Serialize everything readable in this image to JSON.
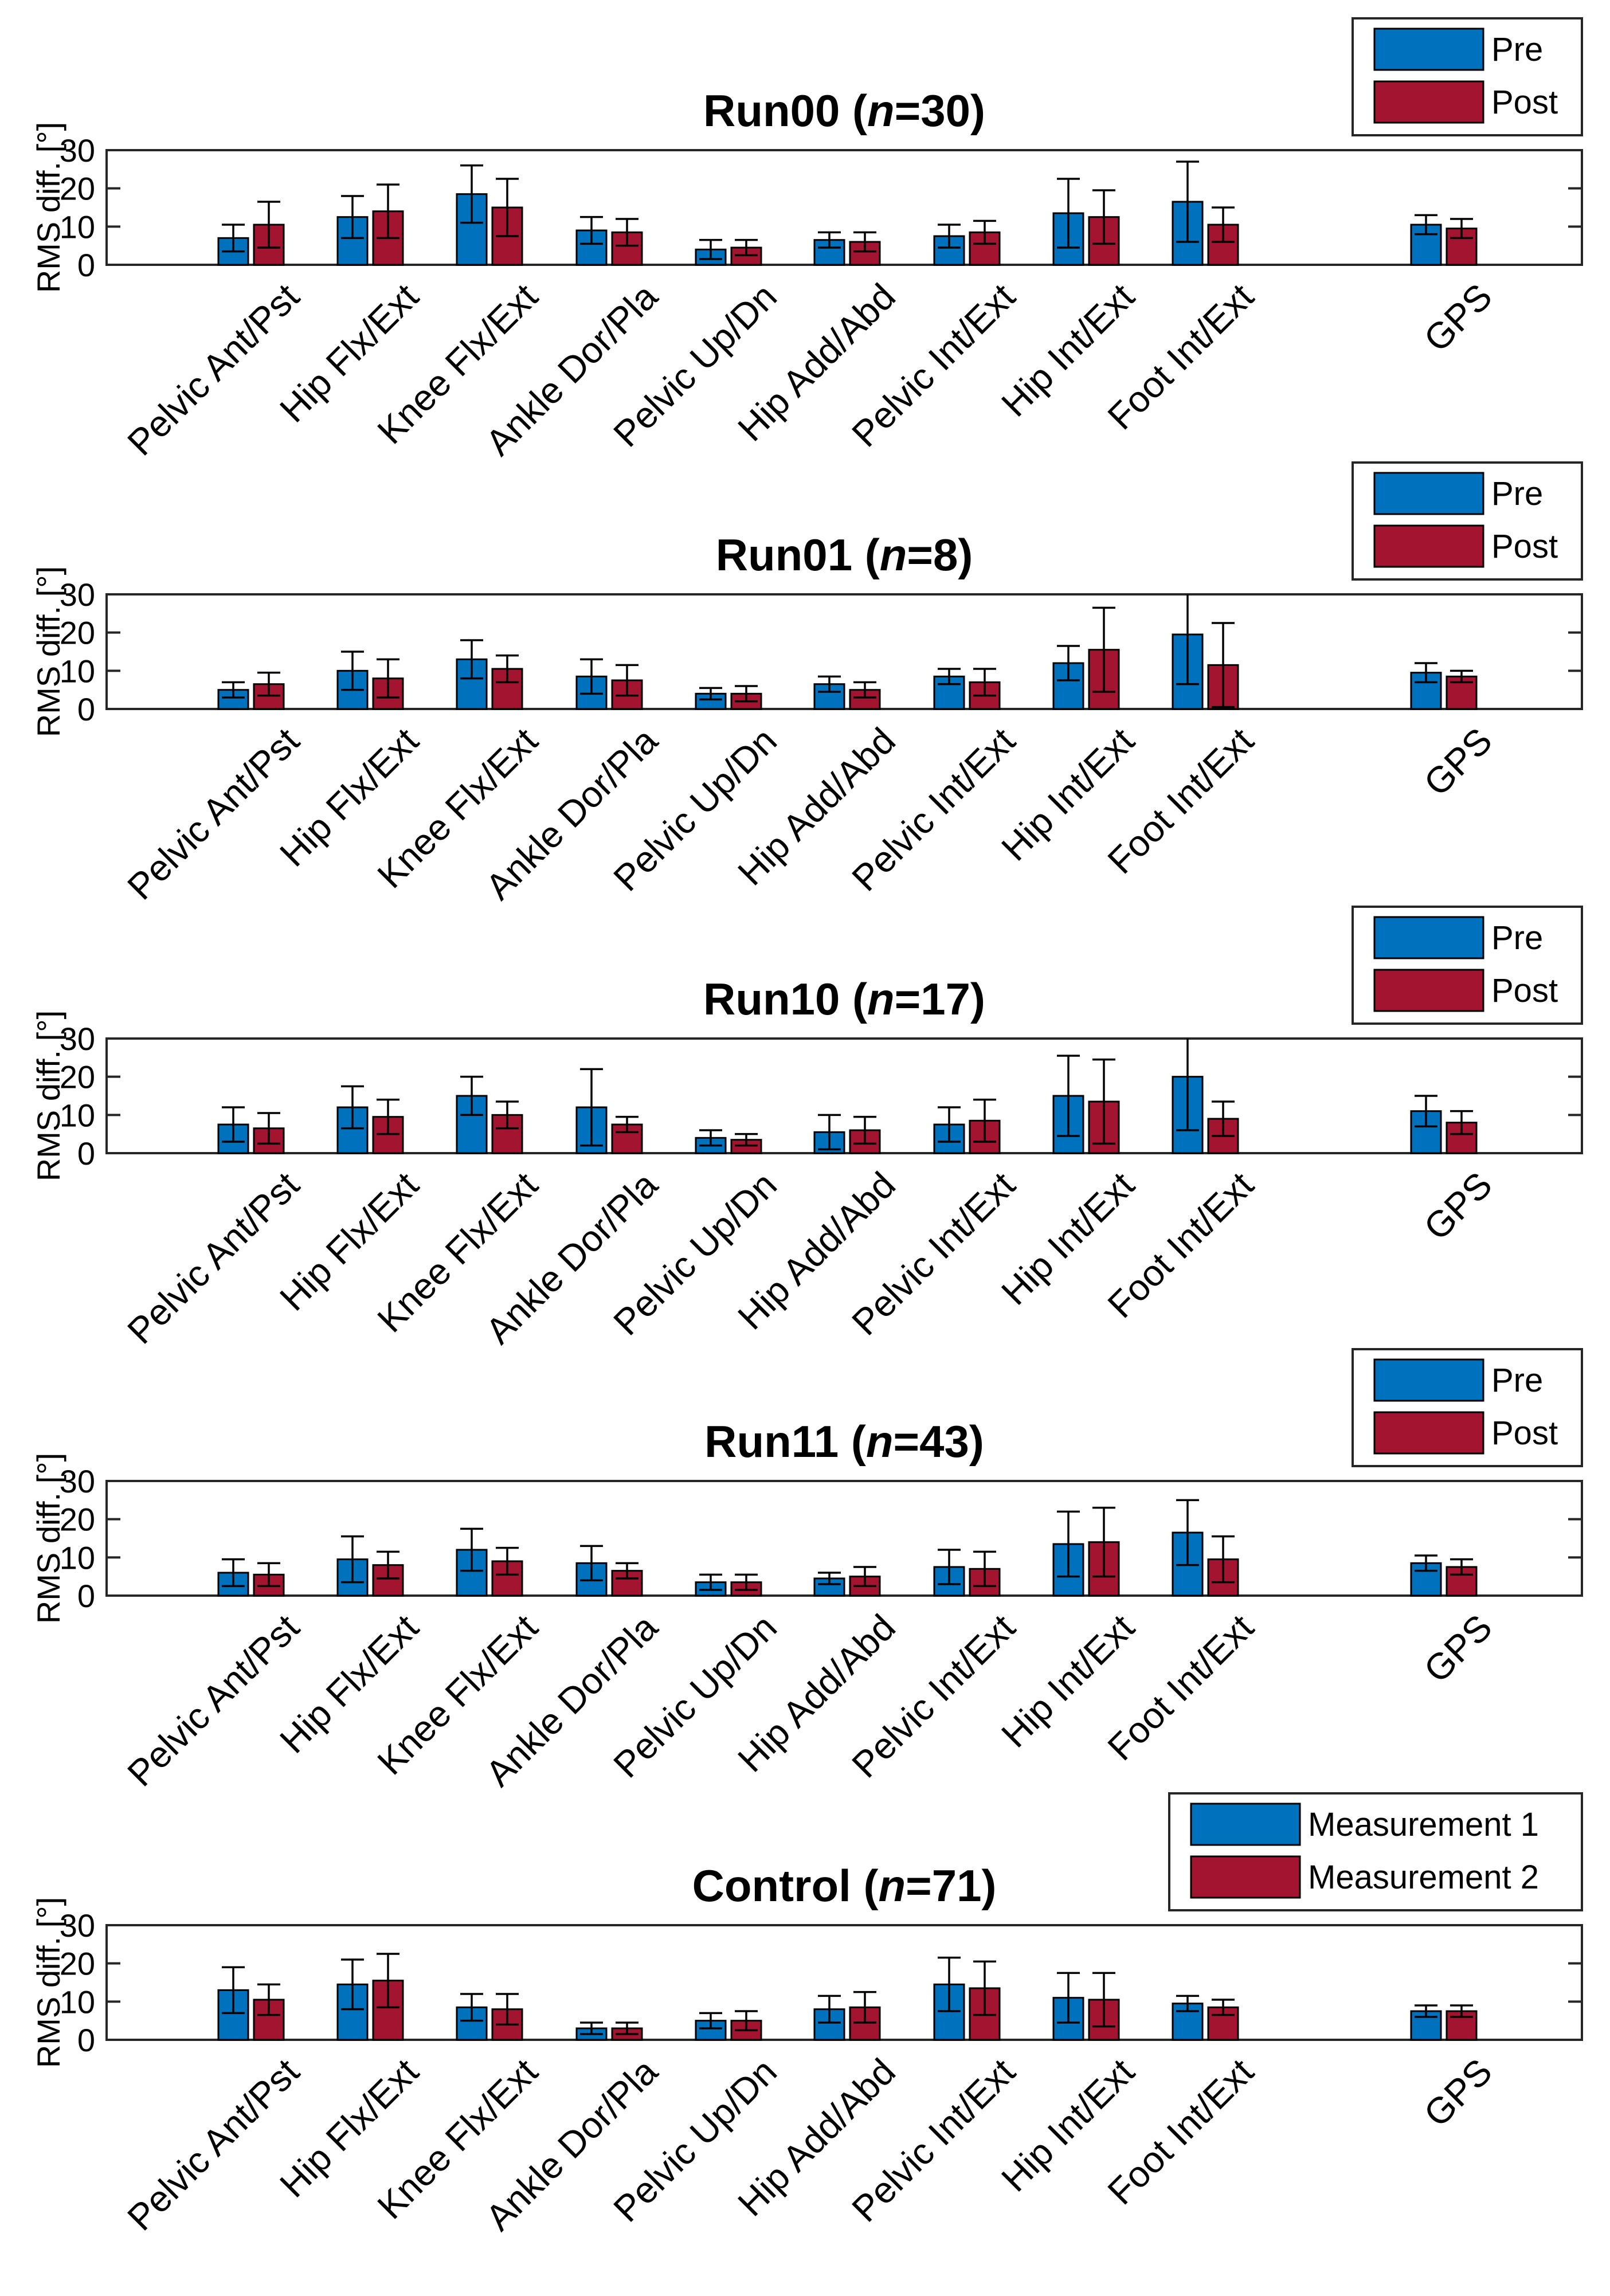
{
  "chart_data": [
    {
      "type": "bar",
      "title": "Run00",
      "n_label": "n",
      "n_value": "=30",
      "ylabel": "RMS diff. [°]",
      "ylim": [
        0,
        30
      ],
      "yticks": [
        "0",
        "10",
        "20",
        "30"
      ],
      "categories": [
        "Pelvic Ant/Pst",
        "Hip Flx/Ext",
        "Knee Flx/Ext",
        "Ankle Dor/Pla",
        "Pelvic Up/Dn",
        "Hip Add/Abd",
        "Pelvic Int/Ext",
        "Hip Int/Ext",
        "Foot Int/Ext",
        "GPS"
      ],
      "series": [
        {
          "name": "Pre",
          "values": [
            7,
            12.5,
            18.5,
            9,
            4,
            6.5,
            7.5,
            13.5,
            16.5,
            10.5
          ],
          "errors": [
            3.5,
            5.5,
            7.5,
            3.5,
            2.5,
            2,
            3,
            9,
            10.5,
            2.5
          ]
        },
        {
          "name": "Post",
          "values": [
            10.5,
            14,
            15,
            8.5,
            4.5,
            6,
            8.5,
            12.5,
            10.5,
            9.5
          ],
          "errors": [
            6,
            7,
            7.5,
            3.5,
            2,
            2.5,
            3,
            7,
            4.5,
            2.5
          ]
        }
      ],
      "legend": [
        "Pre",
        "Post"
      ]
    },
    {
      "type": "bar",
      "title": "Run01",
      "n_label": "n",
      "n_value": "=8",
      "ylabel": "RMS diff. [°]",
      "ylim": [
        0,
        30
      ],
      "yticks": [
        "0",
        "10",
        "20",
        "30"
      ],
      "categories": [
        "Pelvic Ant/Pst",
        "Hip Flx/Ext",
        "Knee Flx/Ext",
        "Ankle Dor/Pla",
        "Pelvic Up/Dn",
        "Hip Add/Abd",
        "Pelvic Int/Ext",
        "Hip Int/Ext",
        "Foot Int/Ext",
        "GPS"
      ],
      "series": [
        {
          "name": "Pre",
          "values": [
            5,
            10,
            13,
            8.5,
            4,
            6.5,
            8.5,
            12,
            19.5,
            9.5
          ],
          "errors": [
            2,
            5,
            5,
            4.5,
            1.5,
            2,
            2,
            4.5,
            13,
            2.5
          ]
        },
        {
          "name": "Post",
          "values": [
            6.5,
            8,
            10.5,
            7.5,
            4,
            5,
            7,
            15.5,
            11.5,
            8.5
          ],
          "errors": [
            3,
            5,
            3.5,
            4,
            2,
            2,
            3.5,
            11,
            11,
            1.5
          ]
        }
      ],
      "legend": [
        "Pre",
        "Post"
      ]
    },
    {
      "type": "bar",
      "title": "Run10",
      "n_label": "n",
      "n_value": "=17",
      "ylabel": "RMS diff. [°]",
      "ylim": [
        0,
        30
      ],
      "yticks": [
        "0",
        "10",
        "20",
        "30"
      ],
      "categories": [
        "Pelvic Ant/Pst",
        "Hip Flx/Ext",
        "Knee Flx/Ext",
        "Ankle Dor/Pla",
        "Pelvic Up/Dn",
        "Hip Add/Abd",
        "Pelvic Int/Ext",
        "Hip Int/Ext",
        "Foot Int/Ext",
        "GPS"
      ],
      "series": [
        {
          "name": "Pre",
          "values": [
            7.5,
            12,
            15,
            12,
            4,
            5.5,
            7.5,
            15,
            20,
            11
          ],
          "errors": [
            4.5,
            5.5,
            5,
            10,
            2,
            4.5,
            4.5,
            10.5,
            14,
            4
          ]
        },
        {
          "name": "Post",
          "values": [
            6.5,
            9.5,
            10,
            7.5,
            3.5,
            6,
            8.5,
            13.5,
            9,
            8
          ],
          "errors": [
            4,
            4.5,
            3.5,
            2,
            1.5,
            3.5,
            5.5,
            11,
            4.5,
            3
          ]
        }
      ],
      "legend": [
        "Pre",
        "Post"
      ]
    },
    {
      "type": "bar",
      "title": "Run11",
      "n_label": "n",
      "n_value": "=43",
      "ylabel": "RMS diff. [°]",
      "ylim": [
        0,
        30
      ],
      "yticks": [
        "0",
        "10",
        "20",
        "30"
      ],
      "categories": [
        "Pelvic Ant/Pst",
        "Hip Flx/Ext",
        "Knee Flx/Ext",
        "Ankle Dor/Pla",
        "Pelvic Up/Dn",
        "Hip Add/Abd",
        "Pelvic Int/Ext",
        "Hip Int/Ext",
        "Foot Int/Ext",
        "GPS"
      ],
      "series": [
        {
          "name": "Pre",
          "values": [
            6,
            9.5,
            12,
            8.5,
            3.5,
            4.5,
            7.5,
            13.5,
            16.5,
            8.5
          ],
          "errors": [
            3.5,
            6,
            5.5,
            4.5,
            2,
            1.5,
            4.5,
            8.5,
            8.5,
            2
          ]
        },
        {
          "name": "Post",
          "values": [
            5.5,
            8,
            9,
            6.5,
            3.5,
            5,
            7,
            14,
            9.5,
            7.5
          ],
          "errors": [
            3,
            3.5,
            3.5,
            2,
            2,
            2.5,
            4.5,
            9,
            6,
            2
          ]
        }
      ],
      "legend": [
        "Pre",
        "Post"
      ]
    },
    {
      "type": "bar",
      "title": "Control",
      "n_label": "n",
      "n_value": "=71",
      "ylabel": "RMS diff. [°]",
      "ylim": [
        0,
        30
      ],
      "yticks": [
        "0",
        "10",
        "20",
        "30"
      ],
      "categories": [
        "Pelvic Ant/Pst",
        "Hip Flx/Ext",
        "Knee Flx/Ext",
        "Ankle Dor/Pla",
        "Pelvic Up/Dn",
        "Hip Add/Abd",
        "Pelvic Int/Ext",
        "Hip Int/Ext",
        "Foot Int/Ext",
        "GPS"
      ],
      "series": [
        {
          "name": "Measurement 1",
          "values": [
            13,
            14.5,
            8.5,
            3,
            5,
            8,
            14.5,
            11,
            9.5,
            7.5
          ],
          "errors": [
            6,
            6.5,
            3.5,
            1.5,
            2,
            3.5,
            7,
            6.5,
            2,
            1.5
          ]
        },
        {
          "name": "Measurement 2",
          "values": [
            10.5,
            15.5,
            8,
            3,
            5,
            8.5,
            13.5,
            10.5,
            8.5,
            7.5
          ],
          "errors": [
            4,
            7,
            4,
            1.5,
            2.5,
            4,
            7,
            7,
            2,
            1.5
          ]
        }
      ],
      "legend": [
        "Measurement 1",
        "Measurement 2"
      ]
    }
  ],
  "colors": {
    "series1": "#0072BD",
    "series2": "#A2142F",
    "axis": "#262626"
  }
}
